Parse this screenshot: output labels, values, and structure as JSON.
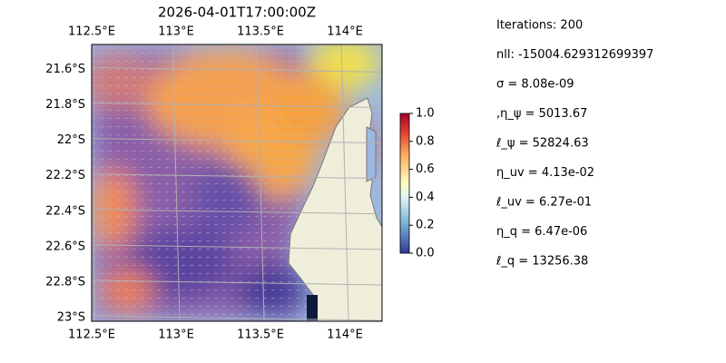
{
  "title": "2026-04-01T17:00:00Z",
  "map": {
    "lon_lim": [
      112.5,
      114.22
    ],
    "lat_lim": [
      -21.46,
      -23.02
    ],
    "lon_ticks": [
      {
        "value": 112.5,
        "label": "112.5°E"
      },
      {
        "value": 113,
        "label": "113°E"
      },
      {
        "value": 113.5,
        "label": "113.5°E"
      },
      {
        "value": 114,
        "label": "114°E"
      }
    ],
    "lat_ticks": [
      {
        "value": -21.6,
        "label": "21.6°S"
      },
      {
        "value": -21.8,
        "label": "21.8°S"
      },
      {
        "value": -22,
        "label": "22°S"
      },
      {
        "value": -22.2,
        "label": "22.2°S"
      },
      {
        "value": -22.4,
        "label": "22.4°S"
      },
      {
        "value": -22.6,
        "label": "22.6°S"
      },
      {
        "value": -22.8,
        "label": "22.8°S"
      },
      {
        "value": -23,
        "label": "23°S"
      }
    ],
    "grid": true
  },
  "colorbar": {
    "lim": [
      0,
      1
    ],
    "ticks": [
      {
        "value": 0,
        "label": "0.0"
      },
      0.2,
      0.4,
      0.6,
      0.8,
      {
        "value": 1,
        "label": "1.0"
      }
    ]
  },
  "stats": [
    "Iterations: 200",
    "nll: -15004.629312699397",
    "σ = 8.08e-09",
    ",η_ψ = 5013.67",
    "ℓ_ψ = 52824.63",
    "η_uv = 4.13e-02",
    "ℓ_uv = 6.27e-01",
    "η_q = 6.47e-06",
    "ℓ_q = 13256.38"
  ]
}
